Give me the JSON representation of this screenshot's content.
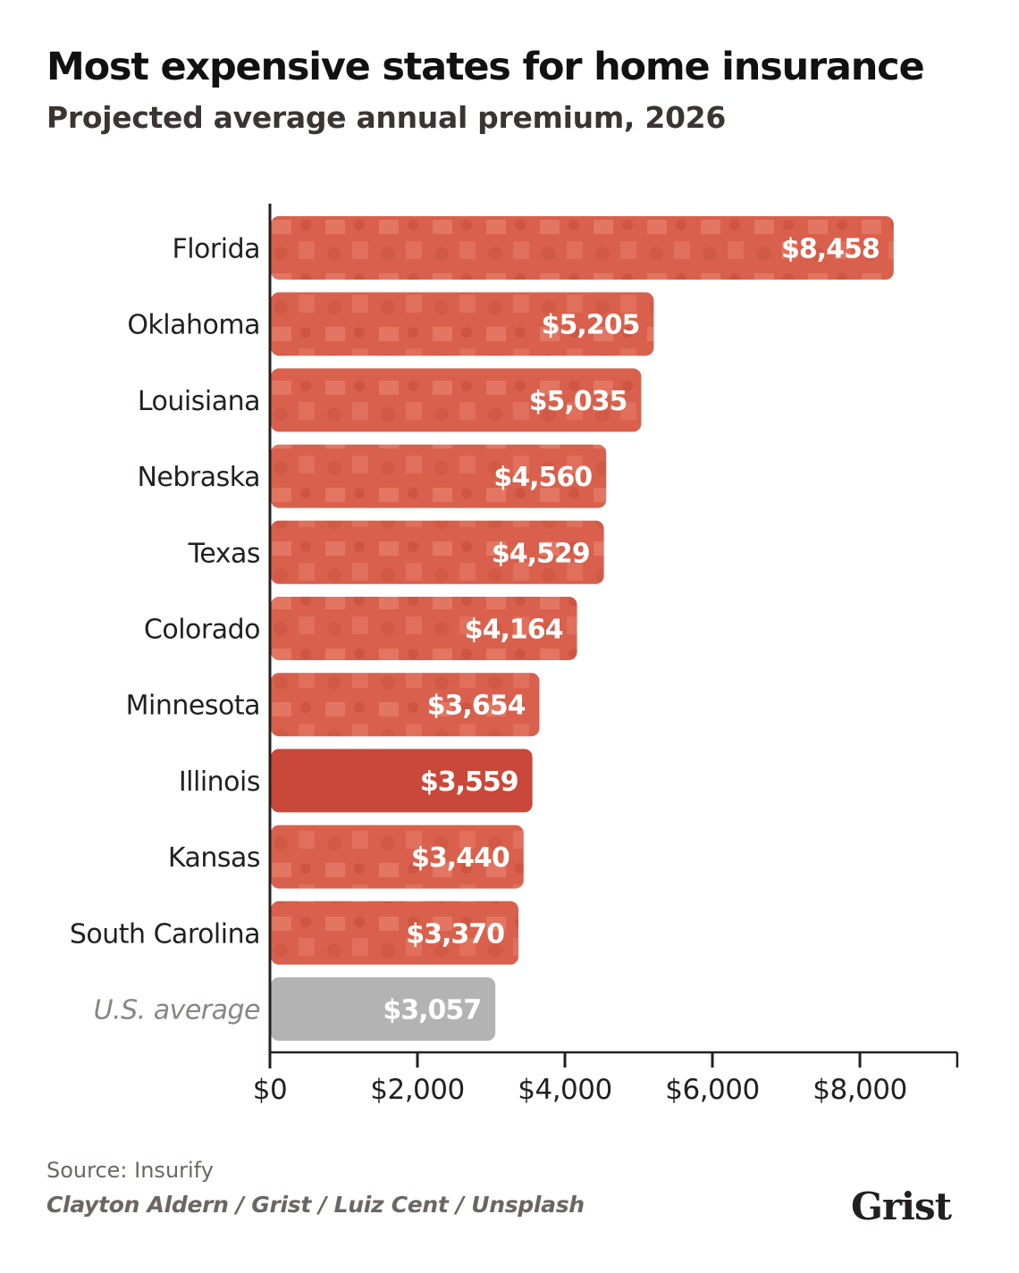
{
  "chart_data": {
    "type": "bar",
    "orientation": "horizontal",
    "title": "Most expensive states for home insurance",
    "subtitle": "Projected average annual premium, 2026",
    "categories": [
      "Florida",
      "Oklahoma",
      "Louisiana",
      "Nebraska",
      "Texas",
      "Colorado",
      "Minnesota",
      "Illinois",
      "Kansas",
      "South Carolina",
      "U.S. average"
    ],
    "values": [
      8458,
      5205,
      5035,
      4560,
      4529,
      4164,
      3654,
      3559,
      3440,
      3370,
      3057
    ],
    "data_labels": [
      "$8,458",
      "$5,205",
      "$5,035",
      "$4,560",
      "$4,529",
      "$4,164",
      "$3,654",
      "$3,559",
      "$3,440",
      "$3,370",
      "$3,057"
    ],
    "xlim": [
      0,
      9320
    ],
    "x_ticks": [
      0,
      2000,
      4000,
      6000,
      8000
    ],
    "x_tick_labels": [
      "$0",
      "$2,000",
      "$4,000",
      "$6,000",
      "$8,000"
    ],
    "xlabel": "",
    "ylabel": "",
    "grid": false,
    "colors": {
      "state": "#d9604c",
      "state_dark": "#c9483a",
      "average": "#b3b3b3"
    }
  },
  "footer": {
    "source": "Source: Insurify",
    "credit": "Clayton Aldern / Grist / Luiz Cent / Unsplash",
    "logo": "Grist"
  }
}
